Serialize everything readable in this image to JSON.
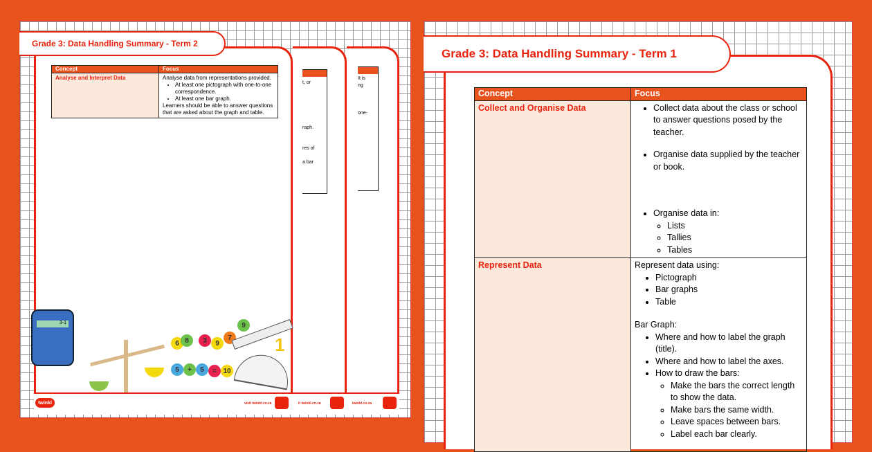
{
  "term2": {
    "title": "Grade 3: Data Handling Summary - Term 2",
    "headers": [
      "Concept",
      "Focus"
    ],
    "row": {
      "concept": "Analyse and Interpret Data",
      "intro": "Analyse data from representations provided.",
      "bullets": [
        "At least one pictograph with one-to-one correspondence.",
        "At least one bar graph."
      ],
      "outro": "Learners should be able to answer questions that are asked about the graph and table."
    },
    "back_page_fragments": [
      "t, or",
      "raph.",
      "res of",
      "a bar"
    ],
    "back_page_fragments_2": [
      "It is",
      "ng",
      "one-"
    ],
    "footer": {
      "logo": "twinkl",
      "url": "visit twinkl.co.za",
      "url2": "it twinkl.co.za",
      "url3": "twinkl.co.za"
    },
    "balls": [
      {
        "t": "6",
        "c": "#f5d90f"
      },
      {
        "t": "8",
        "c": "#6cc24a"
      },
      {
        "t": "3",
        "c": "#e8214e"
      },
      {
        "t": "9",
        "c": "#f5d90f"
      },
      {
        "t": "7",
        "c": "#f07a1a"
      },
      {
        "t": "9",
        "c": "#6cc24a"
      },
      {
        "t": "5",
        "c": "#4aa8e0"
      },
      {
        "t": "+",
        "c": "#6cc24a"
      },
      {
        "t": "5",
        "c": "#4aa8e0"
      },
      {
        "t": "=",
        "c": "#e8214e"
      },
      {
        "t": "10",
        "c": "#f5d90f"
      }
    ],
    "calculator_display": "3-1",
    "ruler_digit": "1"
  },
  "term1": {
    "title": "Grade 3: Data Handling Summary - Term 1",
    "headers": [
      "Concept",
      "Focus"
    ],
    "rows": [
      {
        "concept": "Collect and Organise Data",
        "b1": "Collect data about the class or school to answer questions posed by the teacher.",
        "b2": "Organise data supplied by the teacher or book.",
        "b3": "Organise data in:",
        "sub": [
          "Lists",
          "Tallies",
          "Tables"
        ]
      },
      {
        "concept": "Represent Data",
        "intro": "Represent data using:",
        "bullets": [
          "Pictograph",
          "Bar graphs",
          "Table"
        ],
        "bar_heading": "Bar Graph:",
        "bar_bullets": [
          "Where and how to label the graph (title).",
          "Where and how to label the axes.",
          "How to draw the bars:"
        ],
        "bar_sub": [
          "Make the bars the correct length to show the data.",
          "Make bars the same width.",
          "Leave spaces between bars.",
          "Label each bar clearly."
        ]
      }
    ]
  },
  "colors": {
    "background": "#e8521c",
    "accent": "#e8230e",
    "concept_fill": "#fde9dc"
  }
}
